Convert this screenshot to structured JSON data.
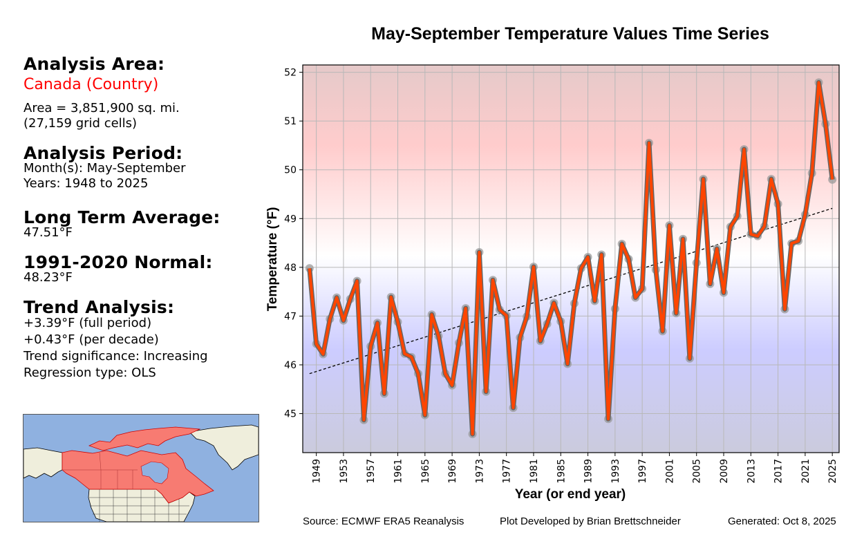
{
  "left_panel": {
    "area_header": "Analysis Area:",
    "area_name": "Canada (Country)",
    "area_size": "Area = 3,851,900 sq. mi.",
    "grid_cells": "(27,159 grid cells)",
    "period_header": "Analysis Period:",
    "months": "Month(s): May-September",
    "years": "Years: 1948 to 2025",
    "lta_header": "Long Term Average:",
    "lta_value": "47.51°F",
    "normal_header": "1991-2020 Normal:",
    "normal_value": "48.23°F",
    "trend_header": "Trend Analysis:",
    "trend_full": "+3.39°F (full period)",
    "trend_decade": "+0.43°F (per decade)",
    "trend_significance": "Trend significance: Increasing",
    "regression_type": "Regression type: OLS",
    "map": {
      "highlight_color": "#f77b72",
      "ocean_color": "#8fb1e0",
      "land_color": "#efeedc",
      "highlight_region": "Canada"
    }
  },
  "footer": {
    "source": "Source: ECMWF ERA5 Reanalysis",
    "developer": "Plot Developed by Brian Brettschneider",
    "generated": "Generated: Oct 8, 2025"
  },
  "chart_data": {
    "type": "line",
    "title": "May-September Temperature Values Time Series",
    "xlabel": "Year (or end year)",
    "ylabel": "Temperature (°F)",
    "xlim": [
      1947,
      2026
    ],
    "ylim": [
      44.2,
      52.15
    ],
    "xticks": [
      1949,
      1953,
      1957,
      1961,
      1965,
      1969,
      1973,
      1977,
      1981,
      1985,
      1989,
      1993,
      1997,
      2001,
      2005,
      2009,
      2013,
      2017,
      2021,
      2025
    ],
    "yticks": [
      45,
      46,
      47,
      48,
      49,
      50,
      51,
      52
    ],
    "grid": true,
    "legend": "none",
    "colors": {
      "line": "#ff4500",
      "line_outline": "#666666",
      "marker": "#999999",
      "trend": "#000000"
    },
    "background_gradient": [
      {
        "value": 52.15,
        "color": "#e5c9c9"
      },
      {
        "value": 50.5,
        "color": "#ffcccc"
      },
      {
        "value": 48.23,
        "color": "#ffffff"
      },
      {
        "value": 46.3,
        "color": "#ccccff"
      },
      {
        "value": 44.2,
        "color": "#cbcbdd"
      }
    ],
    "series": [
      {
        "name": "May-September Temperature",
        "x": [
          1948,
          1949,
          1950,
          1951,
          1952,
          1953,
          1954,
          1955,
          1956,
          1957,
          1958,
          1959,
          1960,
          1961,
          1962,
          1963,
          1964,
          1965,
          1966,
          1967,
          1968,
          1969,
          1970,
          1971,
          1972,
          1973,
          1974,
          1975,
          1976,
          1977,
          1978,
          1979,
          1980,
          1981,
          1982,
          1983,
          1984,
          1985,
          1986,
          1987,
          1988,
          1989,
          1990,
          1991,
          1992,
          1993,
          1994,
          1995,
          1996,
          1997,
          1998,
          1999,
          2000,
          2001,
          2002,
          2003,
          2004,
          2005,
          2006,
          2007,
          2008,
          2009,
          2010,
          2011,
          2012,
          2013,
          2014,
          2015,
          2016,
          2017,
          2018,
          2019,
          2020,
          2021,
          2022,
          2023,
          2024,
          2025
        ],
        "values": [
          47.98,
          46.43,
          46.22,
          46.94,
          47.38,
          46.91,
          47.35,
          47.72,
          44.87,
          46.38,
          46.86,
          45.41,
          47.39,
          46.88,
          46.23,
          46.16,
          45.82,
          44.97,
          47.03,
          46.59,
          45.82,
          45.58,
          46.45,
          47.16,
          44.58,
          48.31,
          45.45,
          47.74,
          47.13,
          47.01,
          45.12,
          46.56,
          46.99,
          48.01,
          46.49,
          46.84,
          47.27,
          46.89,
          46.02,
          47.26,
          47.98,
          48.21,
          47.31,
          48.26,
          44.89,
          47.15,
          48.48,
          48.17,
          47.38,
          47.56,
          50.55,
          47.95,
          46.69,
          48.86,
          47.06,
          48.58,
          46.13,
          48.09,
          49.81,
          47.66,
          48.38,
          47.48,
          48.83,
          49.05,
          50.42,
          48.68,
          48.64,
          48.84,
          49.81,
          49.3,
          47.14,
          48.49,
          48.54,
          49.08,
          49.93,
          51.79,
          50.94,
          49.8
        ]
      }
    ],
    "trend_line": {
      "x": [
        1948,
        2025
      ],
      "values": [
        45.82,
        49.21
      ]
    }
  }
}
